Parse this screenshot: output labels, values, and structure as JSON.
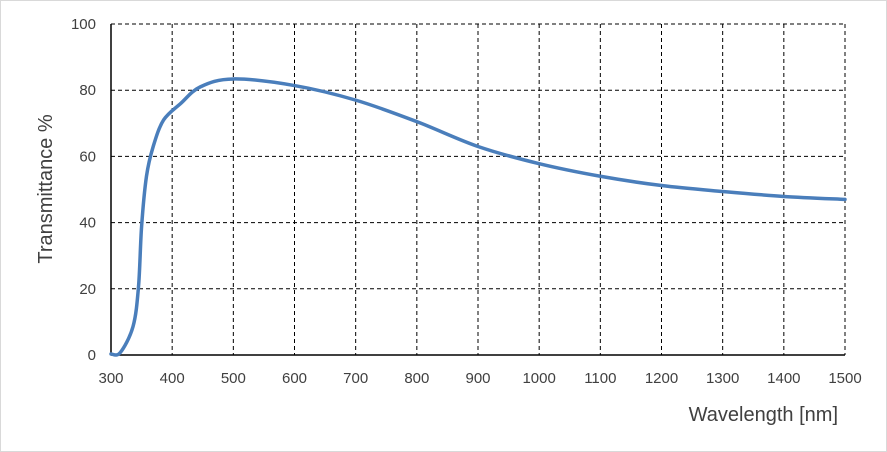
{
  "chart_data": {
    "type": "line",
    "title": "",
    "xlabel": "Wavelength [nm]",
    "ylabel": "Transmittance %",
    "xlim": [
      300,
      1500
    ],
    "ylim": [
      0,
      100
    ],
    "xticks": [
      300,
      400,
      500,
      600,
      700,
      800,
      900,
      1000,
      1100,
      1200,
      1300,
      1400,
      1500
    ],
    "yticks": [
      0,
      20,
      40,
      60,
      80,
      100
    ],
    "grid": true,
    "legend": "none",
    "series": [
      {
        "color": "#4a7ebb",
        "x": [
          300,
          315,
          336,
          345,
          350,
          358,
          369,
          386,
          414,
          446,
          500,
          600,
          700,
          800,
          900,
          1000,
          1100,
          1200,
          1300,
          1400,
          1500
        ],
        "y": [
          0.3,
          0.7,
          8.6,
          20.7,
          38.8,
          54,
          63,
          71,
          76,
          81,
          83.4,
          81.4,
          77,
          70.5,
          63,
          57.8,
          54,
          51.2,
          49.4,
          47.9,
          47
        ]
      }
    ]
  }
}
